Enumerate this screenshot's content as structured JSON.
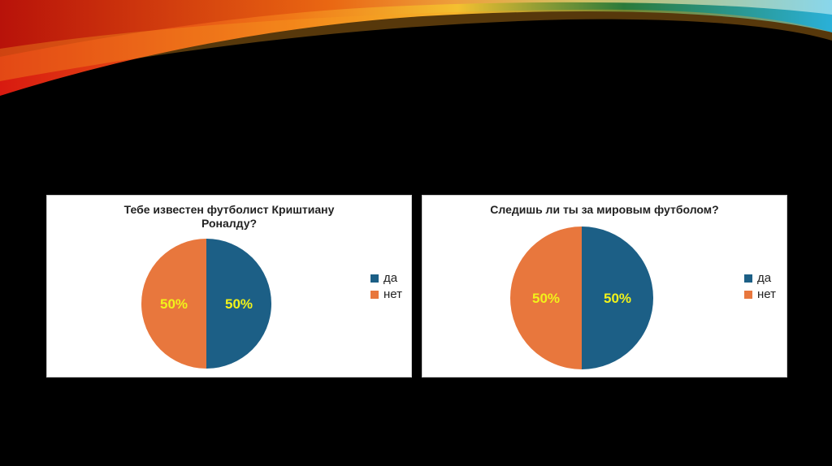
{
  "chart_data": [
    {
      "type": "pie",
      "title": "Тебе известен футболист Криштиану Роналду?",
      "categories": [
        "да",
        "нет"
      ],
      "values": [
        50,
        50
      ],
      "value_labels": [
        "50%",
        "50%"
      ],
      "colors": [
        "#1c5f86",
        "#e8773d"
      ],
      "legend": "right"
    },
    {
      "type": "pie",
      "title": "Следишь ли ты за мировым футболом?",
      "categories": [
        "да",
        "нет"
      ],
      "values": [
        50,
        50
      ],
      "value_labels": [
        "50%",
        "50%"
      ],
      "colors": [
        "#1c5f86",
        "#e8773d"
      ],
      "legend": "right"
    }
  ]
}
